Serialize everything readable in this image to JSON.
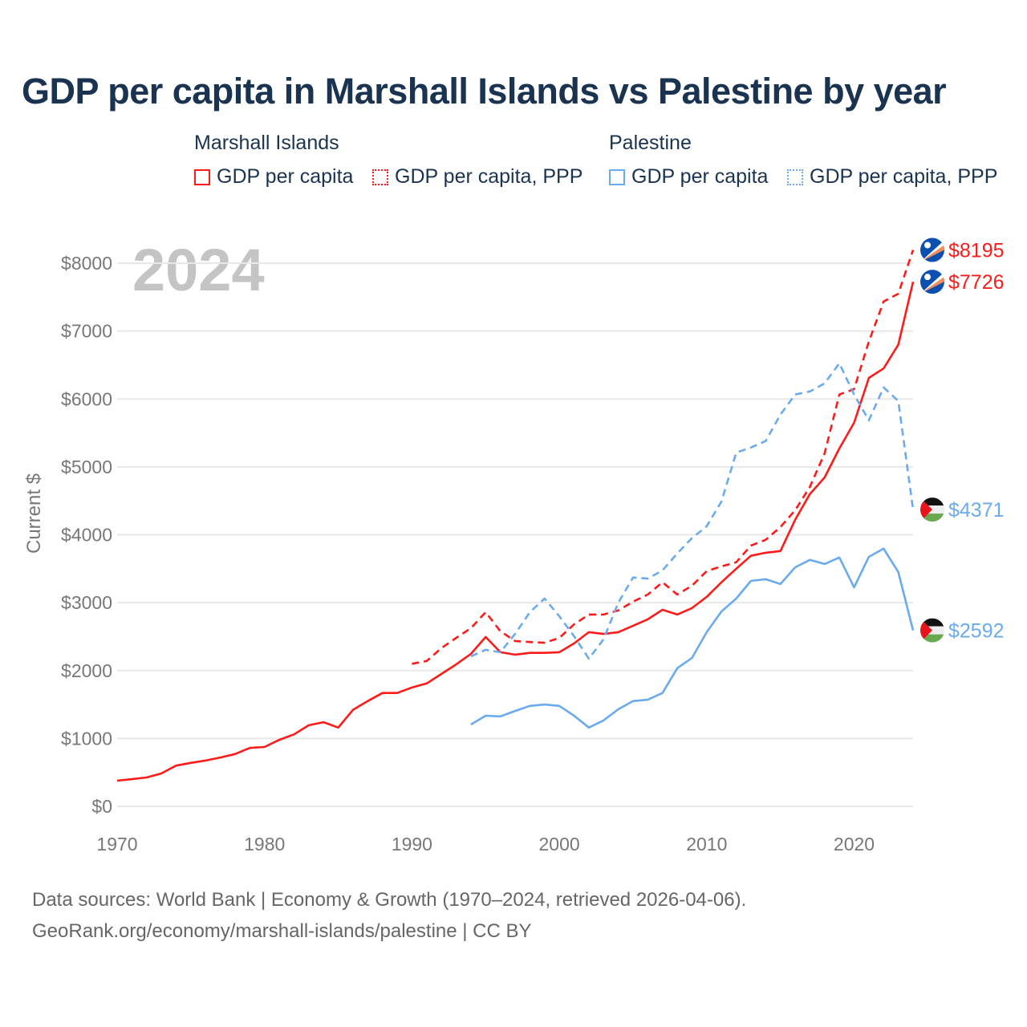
{
  "title": "GDP per capita in Marshall Islands vs Palestine by year",
  "legend": {
    "groups": [
      {
        "name": "Marshall Islands",
        "color": "#ff1a1a",
        "items": [
          "GDP per capita",
          "GDP per capita, PPP"
        ]
      },
      {
        "name": "Palestine",
        "color": "#6aaaee",
        "items": [
          "GDP per capita",
          "GDP per capita, PPP"
        ]
      }
    ]
  },
  "year_overlay": "2024",
  "footer": {
    "line1": "Data sources: World Bank | Economy & Growth (1970–2024, retrieved 2026-04-06).",
    "line2": "GeoRank.org/economy/marshall-islands/palestine | CC BY"
  },
  "chart_data": {
    "type": "line",
    "title": "GDP per capita in Marshall Islands vs Palestine by year",
    "xlabel": "",
    "ylabel": "Current $",
    "xlim": [
      1970,
      2024
    ],
    "ylim": [
      0,
      8000
    ],
    "xticks": [
      "1970",
      "1980",
      "1990",
      "2000",
      "2010",
      "2020"
    ],
    "yticks": [
      "$0",
      "$1000",
      "$2000",
      "$3000",
      "$4000",
      "$5000",
      "$6000",
      "$7000",
      "$8000"
    ],
    "grid": true,
    "legend_position": "top",
    "series": [
      {
        "name": "Marshall Islands GDP per capita",
        "country": "marshall",
        "color": "#ff1a1a",
        "dashed": false,
        "start": 1970,
        "end_label": "$7726",
        "values": [
          378,
          400,
          425,
          485,
          600,
          640,
          675,
          720,
          770,
          860,
          875,
          980,
          1060,
          1195,
          1240,
          1160,
          1420,
          1550,
          1670,
          1670,
          1750,
          1810,
          1950,
          2090,
          2245,
          2495,
          2270,
          2235,
          2260,
          2260,
          2270,
          2400,
          2565,
          2540,
          2565,
          2660,
          2755,
          2895,
          2825,
          2920,
          3085,
          3300,
          3500,
          3690,
          3735,
          3760,
          4220,
          4600,
          4845,
          5270,
          5650,
          6310,
          6450,
          6800,
          7726
        ]
      },
      {
        "name": "Marshall Islands GDP per capita, PPP",
        "country": "marshall",
        "color": "#ff1a1a",
        "dashed": true,
        "start": 1990,
        "end_label": "$8195",
        "values": [
          2100,
          2140,
          2330,
          2480,
          2625,
          2860,
          2580,
          2435,
          2420,
          2410,
          2480,
          2680,
          2825,
          2825,
          2885,
          3015,
          3120,
          3300,
          3120,
          3250,
          3465,
          3535,
          3595,
          3840,
          3925,
          4115,
          4360,
          4705,
          5200,
          6065,
          6145,
          6845,
          7435,
          7550,
          8195
        ]
      },
      {
        "name": "Palestine GDP per capita",
        "country": "palestine",
        "color": "#6aaaee",
        "dashed": false,
        "start": 1994,
        "end_label": "$2592",
        "values": [
          1205,
          1335,
          1325,
          1405,
          1480,
          1500,
          1480,
          1335,
          1160,
          1265,
          1430,
          1550,
          1570,
          1670,
          2035,
          2185,
          2565,
          2870,
          3060,
          3320,
          3345,
          3275,
          3520,
          3630,
          3570,
          3665,
          3225,
          3675,
          3795,
          3450,
          2592
        ]
      },
      {
        "name": "Palestine GDP per capita, PPP",
        "country": "palestine",
        "color": "#6aaaee",
        "dashed": true,
        "start": 1994,
        "end_label": "$4371",
        "values": [
          2210,
          2305,
          2270,
          2540,
          2860,
          3060,
          2800,
          2505,
          2175,
          2460,
          3000,
          3370,
          3355,
          3475,
          3725,
          3950,
          4125,
          4490,
          5210,
          5285,
          5380,
          5770,
          6065,
          6110,
          6230,
          6525,
          6065,
          5685,
          6170,
          5970,
          4371
        ]
      }
    ]
  }
}
